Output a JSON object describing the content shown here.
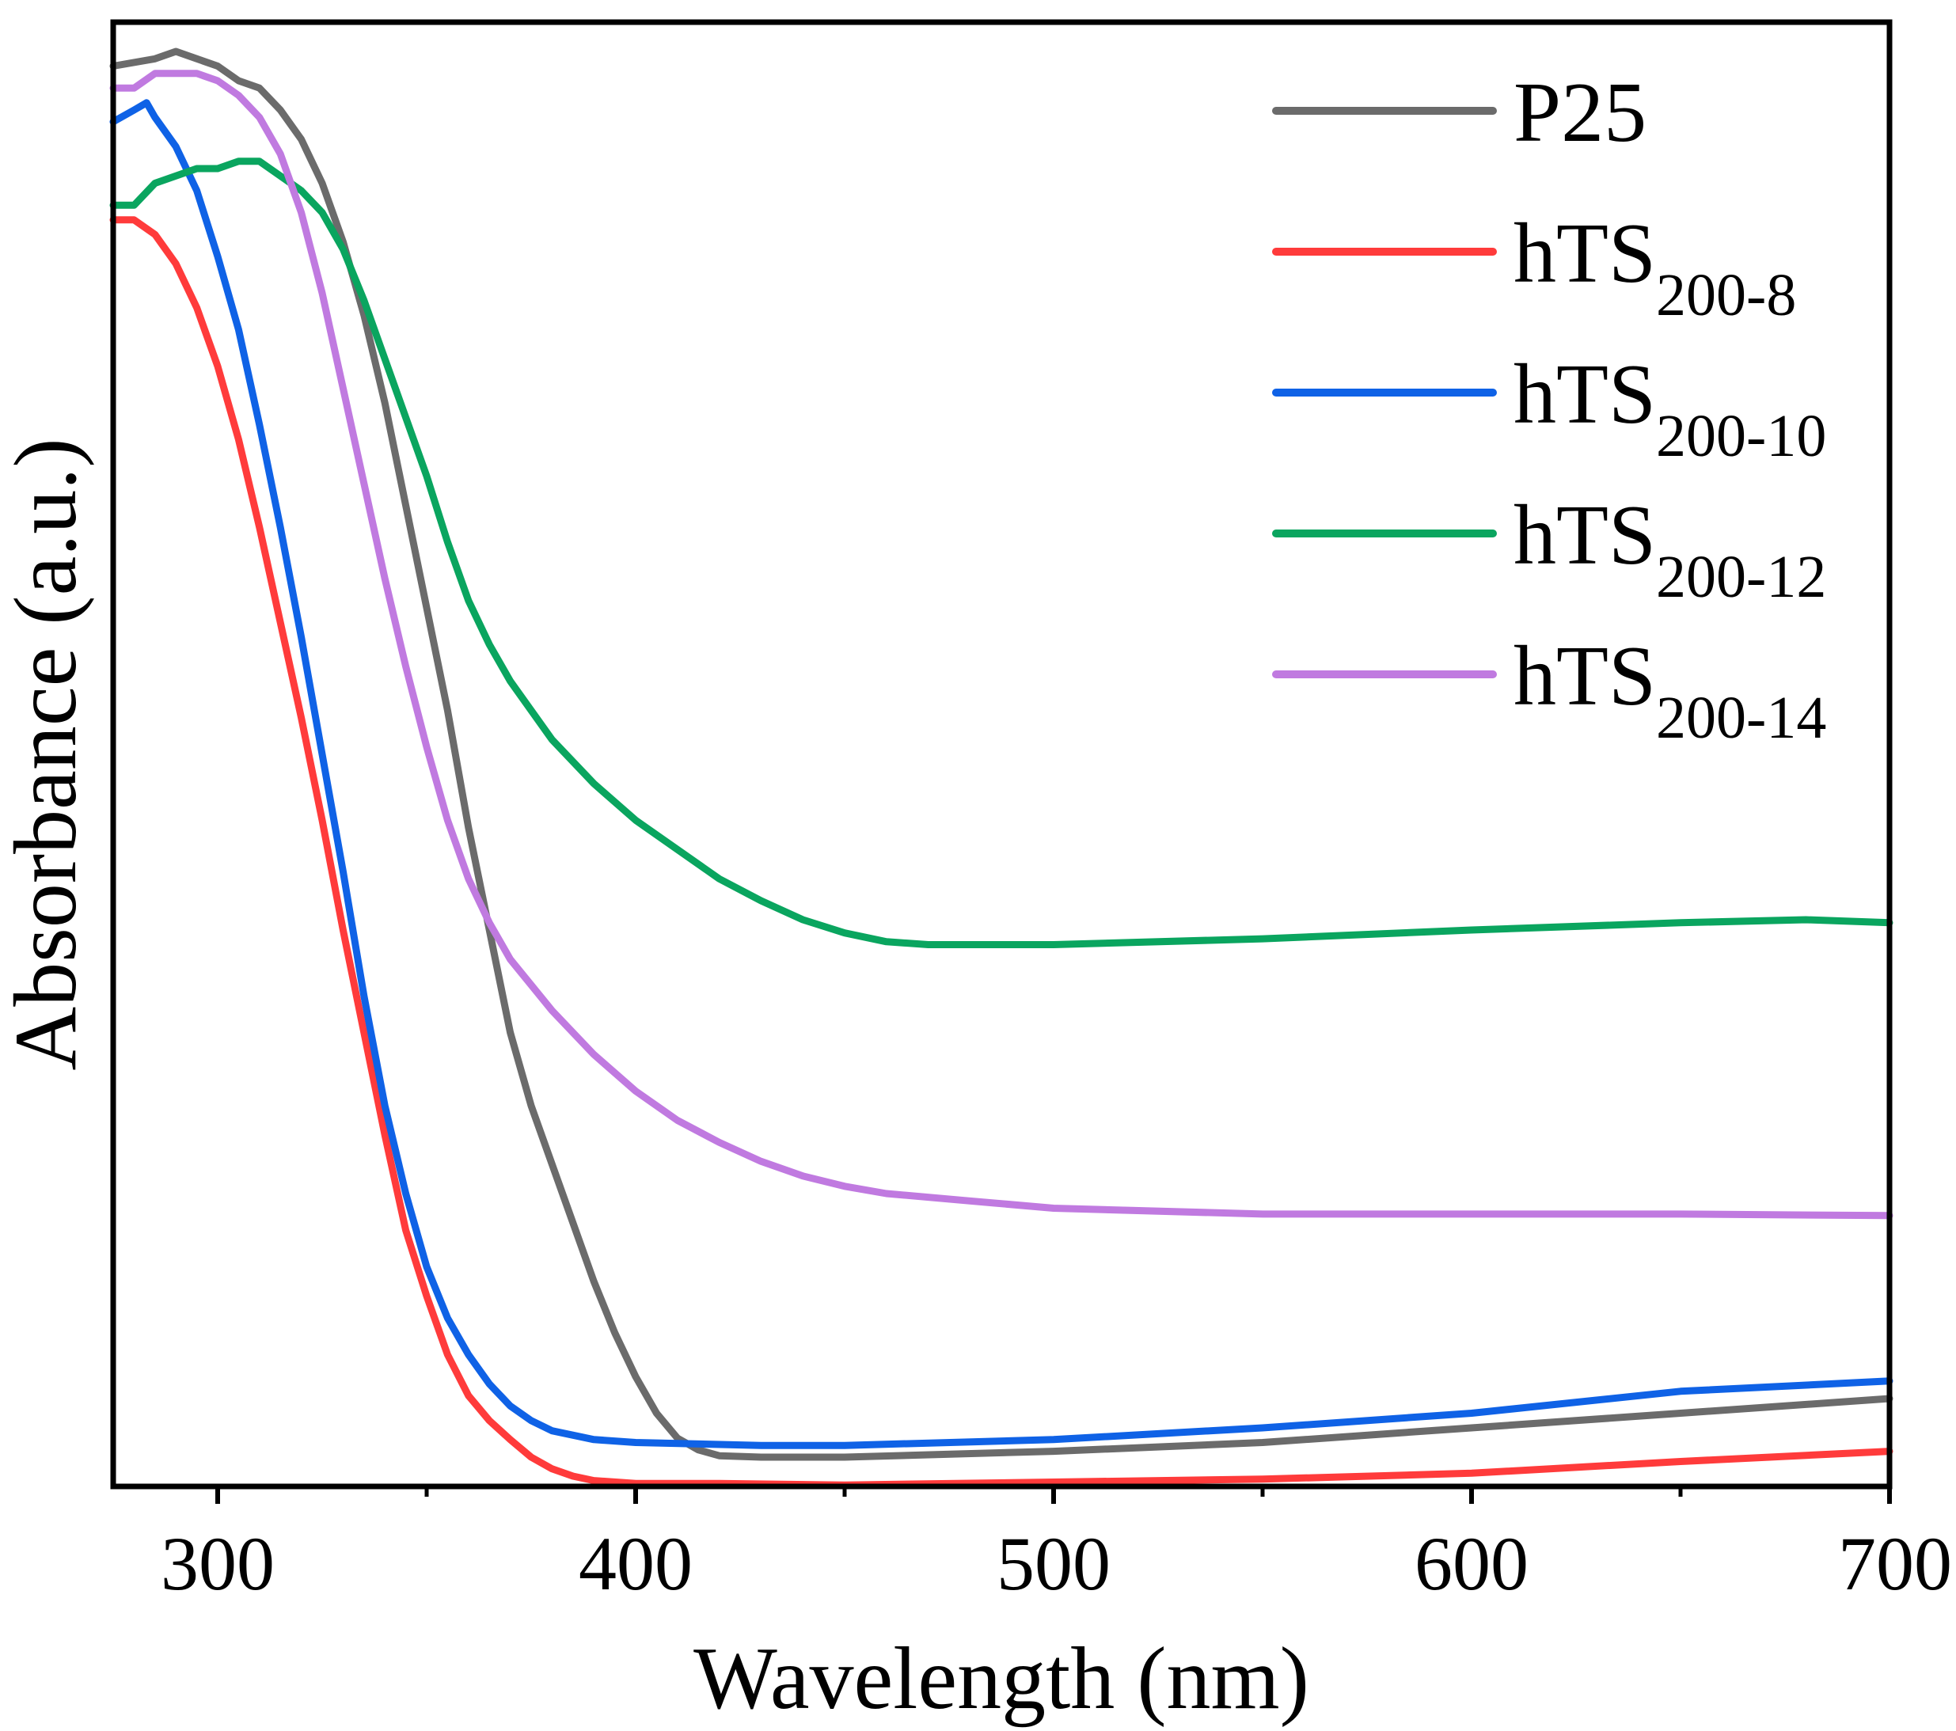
{
  "chart_data": {
    "type": "line",
    "title": "",
    "xlabel": "Wavelength (nm)",
    "ylabel": "Absorbance (a.u.)",
    "xlim": [
      275,
      700
    ],
    "ylim": [
      0,
      1
    ],
    "x_ticks": [
      300,
      400,
      500,
      600,
      700
    ],
    "x_tick_labels": [
      "300",
      "400",
      "500",
      "600",
      "700"
    ],
    "x_minor_ticks": [
      350,
      450,
      550,
      650
    ],
    "y_ticks": [],
    "grid": false,
    "legend_position": "top-right",
    "series": [
      {
        "name": "P25",
        "legend_main": "P25",
        "legend_sub": "",
        "color": "#6b6b6b",
        "points": [
          [
            275,
            0.97
          ],
          [
            285,
            0.975
          ],
          [
            290,
            0.98
          ],
          [
            295,
            0.975
          ],
          [
            300,
            0.97
          ],
          [
            305,
            0.96
          ],
          [
            310,
            0.955
          ],
          [
            315,
            0.94
          ],
          [
            320,
            0.92
          ],
          [
            325,
            0.89
          ],
          [
            330,
            0.85
          ],
          [
            335,
            0.8
          ],
          [
            340,
            0.74
          ],
          [
            345,
            0.67
          ],
          [
            350,
            0.6
          ],
          [
            355,
            0.53
          ],
          [
            360,
            0.45
          ],
          [
            365,
            0.38
          ],
          [
            370,
            0.31
          ],
          [
            375,
            0.26
          ],
          [
            380,
            0.22
          ],
          [
            385,
            0.18
          ],
          [
            390,
            0.14
          ],
          [
            395,
            0.105
          ],
          [
            400,
            0.075
          ],
          [
            405,
            0.05
          ],
          [
            410,
            0.033
          ],
          [
            415,
            0.025
          ],
          [
            420,
            0.021
          ],
          [
            430,
            0.02
          ],
          [
            450,
            0.02
          ],
          [
            500,
            0.024
          ],
          [
            550,
            0.03
          ],
          [
            600,
            0.04
          ],
          [
            650,
            0.05
          ],
          [
            700,
            0.06
          ]
        ]
      },
      {
        "name": "hTS200-8",
        "legend_main": "hTS",
        "legend_sub": "200-8",
        "color": "#ff3b3b",
        "points": [
          [
            275,
            0.865
          ],
          [
            280,
            0.865
          ],
          [
            285,
            0.855
          ],
          [
            290,
            0.835
          ],
          [
            295,
            0.805
          ],
          [
            300,
            0.765
          ],
          [
            305,
            0.715
          ],
          [
            310,
            0.655
          ],
          [
            315,
            0.59
          ],
          [
            320,
            0.525
          ],
          [
            325,
            0.455
          ],
          [
            330,
            0.38
          ],
          [
            335,
            0.31
          ],
          [
            340,
            0.24
          ],
          [
            345,
            0.175
          ],
          [
            350,
            0.13
          ],
          [
            355,
            0.09
          ],
          [
            360,
            0.062
          ],
          [
            365,
            0.045
          ],
          [
            370,
            0.032
          ],
          [
            375,
            0.02
          ],
          [
            380,
            0.012
          ],
          [
            385,
            0.007
          ],
          [
            390,
            0.004
          ],
          [
            400,
            0.002
          ],
          [
            420,
            0.002
          ],
          [
            450,
            0.001
          ],
          [
            500,
            0.003
          ],
          [
            550,
            0.005
          ],
          [
            600,
            0.009
          ],
          [
            650,
            0.017
          ],
          [
            700,
            0.024
          ]
        ]
      },
      {
        "name": "hTS200-10",
        "legend_main": "hTS",
        "legend_sub": "200-10",
        "color": "#0f62e6",
        "points": [
          [
            275,
            0.932
          ],
          [
            280,
            0.94
          ],
          [
            283,
            0.945
          ],
          [
            285,
            0.935
          ],
          [
            290,
            0.915
          ],
          [
            295,
            0.885
          ],
          [
            300,
            0.84
          ],
          [
            305,
            0.79
          ],
          [
            310,
            0.725
          ],
          [
            315,
            0.655
          ],
          [
            320,
            0.58
          ],
          [
            325,
            0.5
          ],
          [
            330,
            0.42
          ],
          [
            335,
            0.335
          ],
          [
            340,
            0.26
          ],
          [
            345,
            0.2
          ],
          [
            350,
            0.15
          ],
          [
            355,
            0.115
          ],
          [
            360,
            0.09
          ],
          [
            365,
            0.07
          ],
          [
            370,
            0.055
          ],
          [
            375,
            0.045
          ],
          [
            380,
            0.038
          ],
          [
            390,
            0.032
          ],
          [
            400,
            0.03
          ],
          [
            430,
            0.028
          ],
          [
            450,
            0.028
          ],
          [
            500,
            0.032
          ],
          [
            550,
            0.04
          ],
          [
            600,
            0.05
          ],
          [
            650,
            0.065
          ],
          [
            700,
            0.072
          ]
        ]
      },
      {
        "name": "hTS200-12",
        "legend_main": "hTS",
        "legend_sub": "200-12",
        "color": "#0aa55f",
        "points": [
          [
            275,
            0.875
          ],
          [
            280,
            0.875
          ],
          [
            285,
            0.89
          ],
          [
            290,
            0.895
          ],
          [
            295,
            0.9
          ],
          [
            300,
            0.9
          ],
          [
            305,
            0.905
          ],
          [
            310,
            0.905
          ],
          [
            315,
            0.895
          ],
          [
            320,
            0.885
          ],
          [
            325,
            0.87
          ],
          [
            330,
            0.845
          ],
          [
            335,
            0.81
          ],
          [
            340,
            0.77
          ],
          [
            345,
            0.73
          ],
          [
            350,
            0.69
          ],
          [
            355,
            0.645
          ],
          [
            360,
            0.605
          ],
          [
            365,
            0.575
          ],
          [
            370,
            0.55
          ],
          [
            375,
            0.53
          ],
          [
            380,
            0.51
          ],
          [
            390,
            0.48
          ],
          [
            400,
            0.455
          ],
          [
            410,
            0.435
          ],
          [
            420,
            0.415
          ],
          [
            430,
            0.4
          ],
          [
            440,
            0.387
          ],
          [
            450,
            0.378
          ],
          [
            460,
            0.372
          ],
          [
            470,
            0.37
          ],
          [
            500,
            0.37
          ],
          [
            550,
            0.374
          ],
          [
            600,
            0.38
          ],
          [
            650,
            0.385
          ],
          [
            680,
            0.387
          ],
          [
            700,
            0.385
          ]
        ]
      },
      {
        "name": "hTS200-14",
        "legend_main": "hTS",
        "legend_sub": "200-14",
        "color": "#c07ae0",
        "points": [
          [
            275,
            0.955
          ],
          [
            280,
            0.955
          ],
          [
            285,
            0.965
          ],
          [
            290,
            0.965
          ],
          [
            295,
            0.965
          ],
          [
            300,
            0.96
          ],
          [
            305,
            0.95
          ],
          [
            310,
            0.935
          ],
          [
            315,
            0.91
          ],
          [
            320,
            0.87
          ],
          [
            325,
            0.815
          ],
          [
            330,
            0.75
          ],
          [
            335,
            0.685
          ],
          [
            340,
            0.62
          ],
          [
            345,
            0.56
          ],
          [
            350,
            0.505
          ],
          [
            355,
            0.455
          ],
          [
            360,
            0.415
          ],
          [
            365,
            0.385
          ],
          [
            370,
            0.36
          ],
          [
            380,
            0.325
          ],
          [
            390,
            0.295
          ],
          [
            400,
            0.27
          ],
          [
            410,
            0.25
          ],
          [
            420,
            0.235
          ],
          [
            430,
            0.222
          ],
          [
            440,
            0.212
          ],
          [
            450,
            0.205
          ],
          [
            460,
            0.2
          ],
          [
            480,
            0.195
          ],
          [
            500,
            0.19
          ],
          [
            550,
            0.186
          ],
          [
            600,
            0.186
          ],
          [
            650,
            0.186
          ],
          [
            700,
            0.185
          ]
        ]
      }
    ]
  }
}
